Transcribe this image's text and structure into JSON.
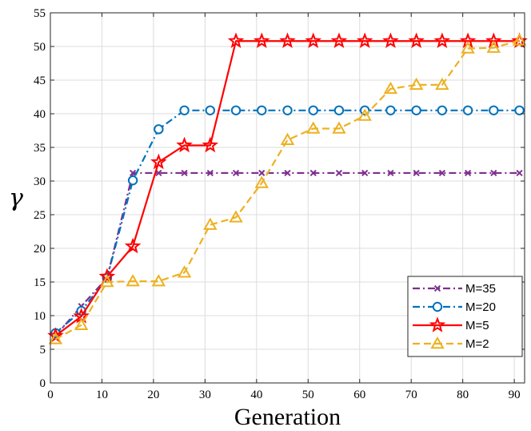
{
  "chart_data": {
    "type": "line",
    "title": "",
    "xlabel": "Generation",
    "ylabel": "γ",
    "xlim": [
      0,
      92
    ],
    "ylim": [
      0,
      55
    ],
    "xticks": [
      0,
      10,
      20,
      30,
      40,
      50,
      60,
      70,
      80,
      90
    ],
    "yticks": [
      0,
      5,
      10,
      15,
      20,
      25,
      30,
      35,
      40,
      45,
      50,
      55
    ],
    "grid": true,
    "legend_position": "bottom-right",
    "x": [
      1,
      6,
      11,
      16,
      21,
      26,
      31,
      36,
      41,
      46,
      51,
      56,
      61,
      66,
      71,
      76,
      81,
      86,
      91
    ],
    "series": [
      {
        "name": "M=35",
        "color": "#7E2F8E",
        "dash": "dashdot",
        "marker": "x",
        "values": [
          7.0,
          11.4,
          15.6,
          31.2,
          31.2,
          31.2,
          31.2,
          31.2,
          31.2,
          31.2,
          31.2,
          31.2,
          31.2,
          31.2,
          31.2,
          31.2,
          31.2,
          31.2,
          31.2
        ]
      },
      {
        "name": "M=20",
        "color": "#0072BD",
        "dash": "dashdot",
        "marker": "circle",
        "values": [
          7.4,
          10.7,
          15.6,
          30.1,
          37.7,
          40.5,
          40.5,
          40.5,
          40.5,
          40.5,
          40.5,
          40.5,
          40.5,
          40.5,
          40.5,
          40.5,
          40.5,
          40.5,
          40.5
        ]
      },
      {
        "name": "M=5",
        "color": "#FF0000",
        "dash": "solid",
        "marker": "star",
        "values": [
          7.0,
          9.9,
          15.8,
          20.3,
          32.8,
          35.3,
          35.3,
          50.8,
          50.8,
          50.8,
          50.8,
          50.8,
          50.8,
          50.8,
          50.8,
          50.8,
          50.8,
          50.8,
          50.8
        ]
      },
      {
        "name": "M=2",
        "color": "#EDB120",
        "dash": "dashed",
        "marker": "triangle",
        "values": [
          6.5,
          8.6,
          15.0,
          15.1,
          15.1,
          16.4,
          23.5,
          24.6,
          29.7,
          36.1,
          37.8,
          37.8,
          39.7,
          43.7,
          44.3,
          44.3,
          49.7,
          49.8,
          50.9
        ]
      }
    ]
  }
}
